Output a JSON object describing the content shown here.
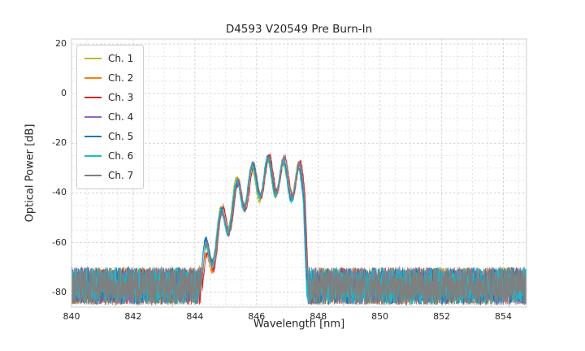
{
  "chart_data": {
    "type": "line",
    "title": "D4593 V20549 Pre Burn-In",
    "xlabel": "Wavelength [nm]",
    "ylabel": "Optical Power [dB]",
    "xlim": [
      840,
      854.75
    ],
    "ylim": [
      -86,
      22
    ],
    "xticks": [
      840,
      842,
      844,
      846,
      848,
      850,
      852,
      854
    ],
    "yticks": [
      20,
      0,
      -20,
      -40,
      -60,
      -80
    ],
    "grid": true,
    "grid_minor_step_x_nm": 0.5,
    "grid_minor_step_y_db": 5,
    "grid_minor_color": "#e6e6e6",
    "grid_major_color": "#d2d2d2",
    "spine_color": "#cccccc",
    "text_color": "#262626",
    "background_color": "#ffffff",
    "legend_position": "upper-left",
    "series": [
      {
        "name": "Ch. 1",
        "color": "#bcbd22"
      },
      {
        "name": "Ch. 2",
        "color": "#ff7f0e"
      },
      {
        "name": "Ch. 3",
        "color": "#d62728"
      },
      {
        "name": "Ch. 4",
        "color": "#9467bd"
      },
      {
        "name": "Ch. 5",
        "color": "#1f77b4"
      },
      {
        "name": "Ch. 6",
        "color": "#17becf"
      },
      {
        "name": "Ch. 7",
        "color": "#7f7f7f"
      }
    ],
    "spectrum_model": {
      "description": "Multi-lobe laser spectrum, lobes between ~844.3 and ~847.5 nm over a noise floor",
      "noise_band_db": [
        -85,
        -70
      ],
      "peak_wavelengths_nm": [
        844.35,
        844.9,
        845.45,
        845.95,
        846.45,
        846.95,
        847.4
      ],
      "peak_powers_db": [
        -62,
        -48,
        -33.5,
        -28.5,
        -25.5,
        -27,
        -29
      ],
      "notch_depth_db": 14.5,
      "left_slope_db_per_nm": 45,
      "right_slope_db_per_nm": 30,
      "right_cutoff_nm": 847.55,
      "cutoff_slope_db_per_nm": 260,
      "channel_shift_nm": 0.04,
      "channel_power_jitter_db": 1.5,
      "low_peak_extra_jitter": 2.5,
      "trace_wiggle_db": 1.4
    }
  }
}
